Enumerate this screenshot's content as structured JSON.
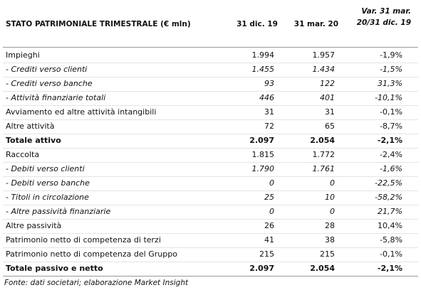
{
  "table": {
    "header": [
      "STATO PATRIMONIALE TRIMESTRALE (€ mln)",
      "31 dic. 19",
      "31 mar. 20",
      "Var. 31 mar. 20/31 dic. 19"
    ],
    "rows": [
      [
        "Impieghi",
        "1.994",
        "1.957",
        "-1,9%"
      ],
      [
        "- Crediti verso clienti",
        "1.455",
        "1.434",
        "-1,5%"
      ],
      [
        "- Crediti verso banche",
        "93",
        "122",
        "31,3%"
      ],
      [
        "- Attività finanziarie totali",
        "446",
        "401",
        "-10,1%"
      ],
      [
        "Avviamento ed altre attività intangibili",
        "31",
        "31",
        "-0,1%"
      ],
      [
        "Altre attività",
        "72",
        "65",
        "-8,7%"
      ],
      [
        "Totale attivo",
        "2.097",
        "2.054",
        "-2,1%"
      ],
      [
        "Raccolta",
        "1.815",
        "1.772",
        "-2,4%"
      ],
      [
        "- Debiti verso clienti",
        "1.790",
        "1.761",
        "-1,6%"
      ],
      [
        "- Debiti verso banche",
        "0",
        "0",
        "-22,5%"
      ],
      [
        "- Titoli in circolazione",
        "25",
        "10",
        "-58,2%"
      ],
      [
        "- Altre passività finanziarie",
        "0",
        "0",
        "21,7%"
      ],
      [
        "Altre passività",
        "26",
        "28",
        "10,4%"
      ],
      [
        "Patrimonio netto di competenza di terzi",
        "41",
        "38",
        "-5,8%"
      ],
      [
        "Patrimonio netto di competenza del Gruppo",
        "215",
        "215",
        "-0,1%"
      ],
      [
        "Totale passivo e netto",
        "2.097",
        "2.054",
        "-2,1%"
      ]
    ]
  },
  "footnote": "Fonte: dati societari; elaborazione Market Insight"
}
